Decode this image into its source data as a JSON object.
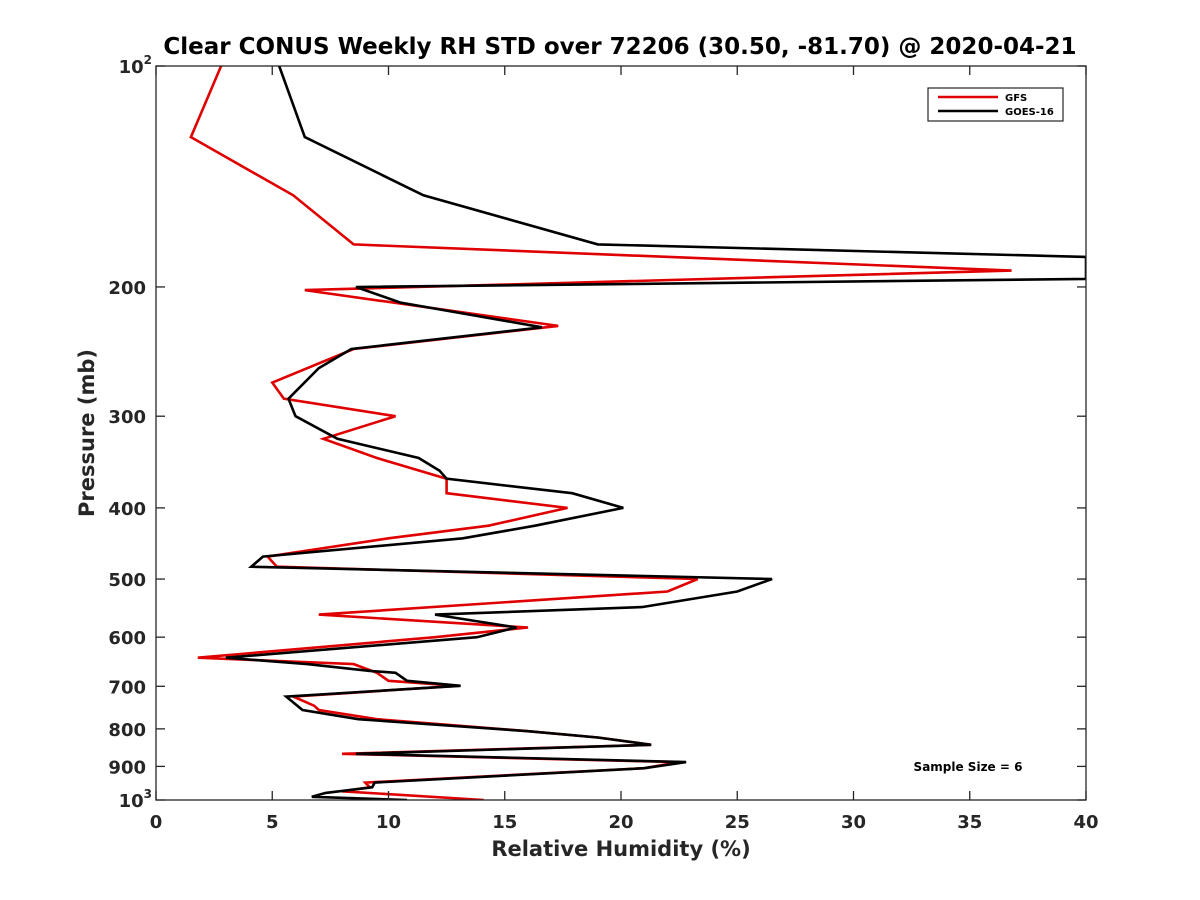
{
  "chart_data": {
    "type": "line",
    "title": "Clear CONUS Weekly RH STD over 72206 (30.50, -81.70) @ 2020-04-21",
    "xlabel": "Relative Humidity (%)",
    "ylabel": "Pressure (mb)",
    "xlim": [
      0,
      40
    ],
    "ylim": [
      100,
      1000
    ],
    "y_scale": "log",
    "y_reversed": true,
    "x_ticks": [
      0,
      5,
      10,
      15,
      20,
      25,
      30,
      35,
      40
    ],
    "y_ticks": [
      {
        "value": 100,
        "label": "10",
        "exp": "2"
      },
      {
        "value": 200,
        "label": "200"
      },
      {
        "value": 300,
        "label": "300"
      },
      {
        "value": 400,
        "label": "400"
      },
      {
        "value": 500,
        "label": "500"
      },
      {
        "value": 600,
        "label": "600"
      },
      {
        "value": 700,
        "label": "700"
      },
      {
        "value": 800,
        "label": "800"
      },
      {
        "value": 900,
        "label": "900"
      },
      {
        "value": 1000,
        "label": "10",
        "exp": "3"
      }
    ],
    "grid": false,
    "legend_position": "top-right",
    "annotation": "Sample Size = 6",
    "series": [
      {
        "name": "GFS",
        "color": "#e00000",
        "points": [
          [
            2.8,
            100
          ],
          [
            1.5,
            125
          ],
          [
            5.9,
            150
          ],
          [
            8.5,
            175
          ],
          [
            36.8,
            190
          ],
          [
            6.4,
            202
          ],
          [
            17.3,
            226
          ],
          [
            8.5,
            243
          ],
          [
            5.0,
            270
          ],
          [
            5.5,
            284
          ],
          [
            10.3,
            300
          ],
          [
            7.2,
            322
          ],
          [
            9.5,
            342
          ],
          [
            12.5,
            365
          ],
          [
            12.5,
            382
          ],
          [
            17.7,
            400
          ],
          [
            14.3,
            423
          ],
          [
            10.0,
            440
          ],
          [
            4.8,
            466
          ],
          [
            5.2,
            481
          ],
          [
            23.3,
            500
          ],
          [
            22.0,
            520
          ],
          [
            7.0,
            559
          ],
          [
            16.0,
            582
          ],
          [
            12.0,
            600
          ],
          [
            1.8,
            640
          ],
          [
            8.5,
            653
          ],
          [
            9.5,
            671
          ],
          [
            10.0,
            688
          ],
          [
            13.0,
            699
          ],
          [
            5.9,
            723
          ],
          [
            6.8,
            744
          ],
          [
            7.0,
            754
          ],
          [
            9.5,
            776
          ],
          [
            16.0,
            806
          ],
          [
            19.0,
            822
          ],
          [
            21.3,
            841
          ],
          [
            8.0,
            865
          ],
          [
            22.5,
            888
          ],
          [
            21.0,
            905
          ],
          [
            9.0,
            947
          ],
          [
            9.2,
            961
          ],
          [
            8.0,
            973
          ],
          [
            14.1,
            1000
          ]
        ]
      },
      {
        "name": "GOES-16",
        "color": "#000000",
        "points": [
          [
            5.3,
            100
          ],
          [
            6.4,
            125
          ],
          [
            11.5,
            150
          ],
          [
            19.0,
            175
          ],
          [
            40.0,
            182
          ],
          [
            40.0,
            195
          ],
          [
            8.6,
            200
          ],
          [
            10.5,
            210
          ],
          [
            16.6,
            227
          ],
          [
            8.4,
            243
          ],
          [
            7.0,
            258
          ],
          [
            5.7,
            284
          ],
          [
            6.0,
            300
          ],
          [
            7.8,
            322
          ],
          [
            11.3,
            342
          ],
          [
            12.2,
            356
          ],
          [
            12.5,
            365
          ],
          [
            17.9,
            382
          ],
          [
            20.1,
            400
          ],
          [
            16.3,
            423
          ],
          [
            13.2,
            440
          ],
          [
            4.6,
            466
          ],
          [
            4.1,
            481
          ],
          [
            26.5,
            500
          ],
          [
            25.0,
            520
          ],
          [
            20.9,
            546
          ],
          [
            12.0,
            559
          ],
          [
            15.5,
            582
          ],
          [
            13.8,
            600
          ],
          [
            3.0,
            640
          ],
          [
            6.5,
            653
          ],
          [
            9.2,
            667
          ],
          [
            10.3,
            671
          ],
          [
            10.8,
            688
          ],
          [
            13.1,
            699
          ],
          [
            5.6,
            723
          ],
          [
            6.3,
            754
          ],
          [
            8.7,
            776
          ],
          [
            16.0,
            806
          ],
          [
            19.0,
            822
          ],
          [
            21.3,
            841
          ],
          [
            8.6,
            865
          ],
          [
            22.8,
            888
          ],
          [
            21.0,
            905
          ],
          [
            9.4,
            947
          ],
          [
            9.3,
            961
          ],
          [
            7.3,
            978
          ],
          [
            6.7,
            990
          ],
          [
            10.8,
            1000
          ]
        ]
      }
    ]
  }
}
